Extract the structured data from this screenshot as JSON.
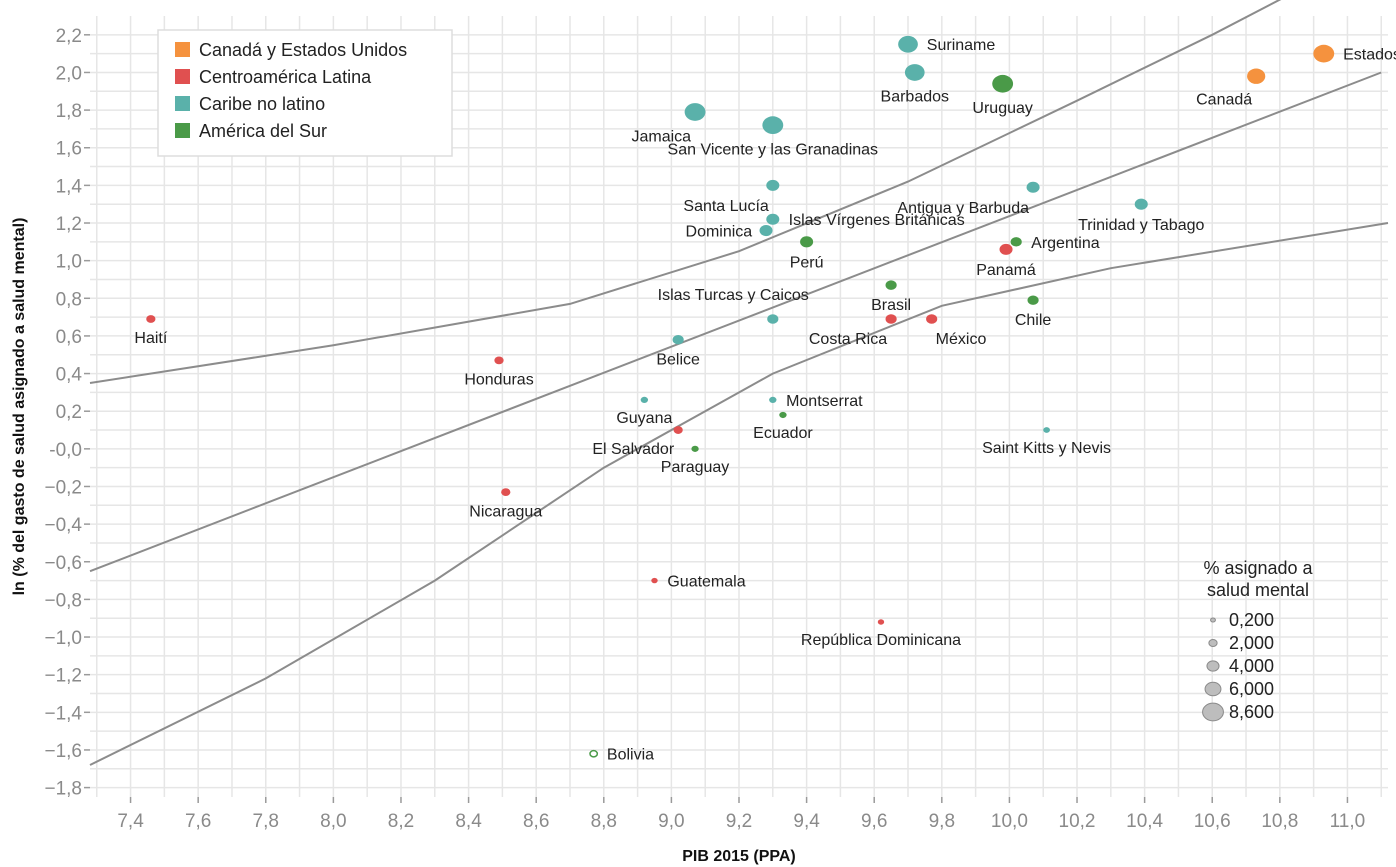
{
  "chart_data": {
    "type": "scatter",
    "xlabel": "PIB 2015 (PPA)",
    "ylabel": "ln (% del gasto de salud asignado a salud mental)",
    "xlim": [
      7.28,
      11.12
    ],
    "ylim": [
      -1.85,
      2.3
    ],
    "x_ticks": [
      "7,4",
      "7,6",
      "7,8",
      "8,0",
      "8,2",
      "8,4",
      "8,6",
      "8,8",
      "9,0",
      "9,2",
      "9,4",
      "9,6",
      "9,8",
      "10,0",
      "10,2",
      "10,4",
      "10,6",
      "10,8",
      "11,0"
    ],
    "x_tick_values": [
      7.4,
      7.6,
      7.8,
      8.0,
      8.2,
      8.4,
      8.6,
      8.8,
      9.0,
      9.2,
      9.4,
      9.6,
      9.8,
      10.0,
      10.2,
      10.4,
      10.6,
      10.8,
      11.0
    ],
    "y_ticks": [
      "2,2",
      "2,0",
      "1,8",
      "1,6",
      "1,4",
      "1,2",
      "1,0",
      "0,8",
      "0,6",
      "0,4",
      "0,2",
      "-0,0",
      "−0,2",
      "−0,4",
      "−0,6",
      "−0,8",
      "−1,0",
      "−1,2",
      "−1,4",
      "−1,6",
      "−1,8"
    ],
    "y_tick_values": [
      2.2,
      2.0,
      1.8,
      1.6,
      1.4,
      1.2,
      1.0,
      0.8,
      0.6,
      0.4,
      0.2,
      0.0,
      -0.2,
      -0.4,
      -0.6,
      -0.8,
      -1.0,
      -1.2,
      -1.4,
      -1.6,
      -1.8
    ],
    "grid": true,
    "legend_placement": "top-left",
    "groups": [
      {
        "id": "na",
        "name": "Canadá y Estados Unidos",
        "color": "#f5923e"
      },
      {
        "id": "ca",
        "name": "Centroamérica Latina",
        "color": "#e05050"
      },
      {
        "id": "cb",
        "name": "Caribe no latino",
        "color": "#5ab1aa"
      },
      {
        "id": "sa",
        "name": "América del Sur",
        "color": "#4a9a48"
      }
    ],
    "points": [
      {
        "name": "Estados Unidos",
        "group": "na",
        "x": 10.93,
        "y": 2.1,
        "size": 8.6,
        "label_pos": "right"
      },
      {
        "name": "Canadá",
        "group": "na",
        "x": 10.73,
        "y": 1.98,
        "size": 7.2,
        "label_pos": "below-left"
      },
      {
        "name": "Suriname",
        "group": "cb",
        "x": 9.7,
        "y": 2.15,
        "size": 8.0,
        "label_pos": "right"
      },
      {
        "name": "Barbados",
        "group": "cb",
        "x": 9.72,
        "y": 2.0,
        "size": 8.0,
        "label_pos": "below"
      },
      {
        "name": "Uruguay",
        "group": "sa",
        "x": 9.98,
        "y": 1.94,
        "size": 8.6,
        "label_pos": "below"
      },
      {
        "name": "Jamaica",
        "group": "cb",
        "x": 9.07,
        "y": 1.79,
        "size": 8.6,
        "label_pos": "below-left"
      },
      {
        "name": "San Vicente y las Granadinas",
        "group": "cb",
        "x": 9.3,
        "y": 1.72,
        "size": 8.6,
        "label_pos": "below"
      },
      {
        "name": "Santa Lucía",
        "group": "cb",
        "x": 9.3,
        "y": 1.4,
        "size": 4.5,
        "label_pos": "below-left"
      },
      {
        "name": "Antigua y Barbuda",
        "group": "cb",
        "x": 10.07,
        "y": 1.39,
        "size": 4.5,
        "label_pos": "below-left"
      },
      {
        "name": "Trinidad y Tabago",
        "group": "cb",
        "x": 10.39,
        "y": 1.3,
        "size": 4.5,
        "label_pos": "below"
      },
      {
        "name": "Islas Vírgenes Británicas",
        "group": "cb",
        "x": 9.3,
        "y": 1.22,
        "size": 4.5,
        "label_pos": "right"
      },
      {
        "name": "Dominica",
        "group": "cb",
        "x": 9.28,
        "y": 1.16,
        "size": 4.5,
        "label_pos": "left"
      },
      {
        "name": "Perú",
        "group": "sa",
        "x": 9.4,
        "y": 1.1,
        "size": 4.5,
        "label_pos": "below"
      },
      {
        "name": "Argentina",
        "group": "sa",
        "x": 10.02,
        "y": 1.1,
        "size": 3.5,
        "label_pos": "right"
      },
      {
        "name": "Panamá",
        "group": "ca",
        "x": 9.99,
        "y": 1.06,
        "size": 4.5,
        "label_pos": "below"
      },
      {
        "name": "Brasil",
        "group": "sa",
        "x": 9.65,
        "y": 0.87,
        "size": 3.5,
        "label_pos": "below"
      },
      {
        "name": "Islas Turcas y Caicos",
        "group": "cb",
        "x": 9.3,
        "y": 0.69,
        "size": 3.5,
        "label_pos": "above-left"
      },
      {
        "name": "Chile",
        "group": "sa",
        "x": 10.07,
        "y": 0.79,
        "size": 3.5,
        "label_pos": "below"
      },
      {
        "name": "Costa Rica",
        "group": "ca",
        "x": 9.65,
        "y": 0.69,
        "size": 3.5,
        "label_pos": "below-left"
      },
      {
        "name": "México",
        "group": "ca",
        "x": 9.77,
        "y": 0.69,
        "size": 3.5,
        "label_pos": "below-right"
      },
      {
        "name": "Haití",
        "group": "ca",
        "x": 7.46,
        "y": 0.69,
        "size": 2.5,
        "label_pos": "below"
      },
      {
        "name": "Belice",
        "group": "cb",
        "x": 9.02,
        "y": 0.58,
        "size": 3.5,
        "label_pos": "below"
      },
      {
        "name": "Honduras",
        "group": "ca",
        "x": 8.49,
        "y": 0.47,
        "size": 2.5,
        "label_pos": "below"
      },
      {
        "name": "Guyana",
        "group": "cb",
        "x": 8.92,
        "y": 0.26,
        "size": 1.5,
        "label_pos": "below"
      },
      {
        "name": "Montserrat",
        "group": "cb",
        "x": 9.3,
        "y": 0.26,
        "size": 1.5,
        "label_pos": "right"
      },
      {
        "name": "Ecuador",
        "group": "sa",
        "x": 9.33,
        "y": 0.18,
        "size": 1.5,
        "label_pos": "below"
      },
      {
        "name": "El Salvador",
        "group": "ca",
        "x": 9.02,
        "y": 0.1,
        "size": 2.5,
        "label_pos": "below-left"
      },
      {
        "name": "Saint Kitts y Nevis",
        "group": "cb",
        "x": 10.11,
        "y": 0.1,
        "size": 1.2,
        "label_pos": "below"
      },
      {
        "name": "Paraguay",
        "group": "sa",
        "x": 9.07,
        "y": 0.0,
        "size": 1.5,
        "label_pos": "below"
      },
      {
        "name": "Nicaragua",
        "group": "ca",
        "x": 8.51,
        "y": -0.23,
        "size": 2.5,
        "label_pos": "below"
      },
      {
        "name": "Guatemala",
        "group": "ca",
        "x": 8.95,
        "y": -0.7,
        "size": 1.0,
        "label_pos": "right"
      },
      {
        "name": "República Dominicana",
        "group": "ca",
        "x": 9.62,
        "y": -0.92,
        "size": 1.0,
        "label_pos": "below"
      },
      {
        "name": "Bolivia",
        "group": "sa",
        "x": 8.77,
        "y": -1.62,
        "size": 1.5,
        "label_pos": "right",
        "hollow": true
      }
    ],
    "fit_line": [
      [
        7.28,
        -0.65
      ],
      [
        11.1,
        2.0
      ]
    ],
    "band_upper": [
      [
        7.28,
        0.35
      ],
      [
        8.0,
        0.55
      ],
      [
        8.7,
        0.77
      ],
      [
        9.2,
        1.05
      ],
      [
        9.7,
        1.42
      ],
      [
        10.2,
        1.85
      ],
      [
        10.6,
        2.2
      ],
      [
        10.9,
        2.48
      ]
    ],
    "band_lower": [
      [
        7.28,
        -1.68
      ],
      [
        7.8,
        -1.22
      ],
      [
        8.3,
        -0.7
      ],
      [
        8.8,
        -0.1
      ],
      [
        9.3,
        0.4
      ],
      [
        9.8,
        0.76
      ],
      [
        10.3,
        0.96
      ],
      [
        11.12,
        1.2
      ]
    ],
    "size_legend": {
      "title_lines": [
        "% asignado a",
        "salud mental"
      ],
      "entries": [
        {
          "label": "0,200",
          "size": 0.2
        },
        {
          "label": "2,000",
          "size": 2.0
        },
        {
          "label": "4,000",
          "size": 4.0
        },
        {
          "label": "6,000",
          "size": 6.0
        },
        {
          "label": "8,600",
          "size": 8.6
        }
      ],
      "color": "#bdbdbd"
    }
  }
}
